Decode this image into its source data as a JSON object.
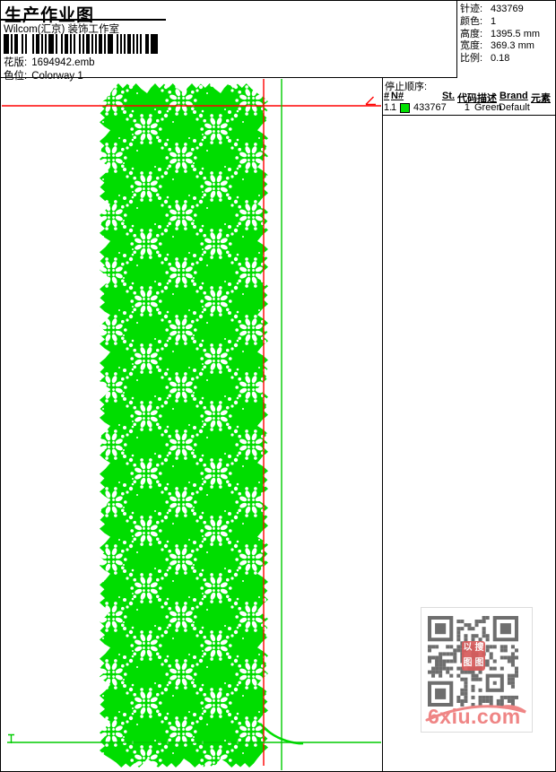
{
  "header": {
    "title": "生产作业图",
    "company": "Wilcom(汇京) 装饰工作室",
    "design_fields": [
      {
        "label": "花版:",
        "value": "1694942.emb"
      },
      {
        "label": "色位:",
        "value": "Colorway 1"
      }
    ],
    "info_fields": [
      {
        "label": "针迹:",
        "value": "433769"
      },
      {
        "label": "颜色:",
        "value": "1"
      },
      {
        "label": "高度:",
        "value": "1395.5 mm"
      },
      {
        "label": "宽度:",
        "value": "369.3 mm"
      },
      {
        "label": "比例:",
        "value": "0.18"
      }
    ]
  },
  "stop_table": {
    "title": "停止顺序:",
    "columns": [
      "#",
      "N#",
      "St.",
      "代码",
      "描述",
      "Brand",
      "元素"
    ],
    "row": {
      "seq": "1.",
      "needle": "1",
      "swatch_color": "#00e000",
      "stitches": "433767",
      "code": "1",
      "description": "Green",
      "brand": "Default",
      "element": ""
    }
  },
  "design": {
    "thread_color": "#00dd00",
    "hole_color": "#ffffff",
    "start_guide_color": "#ff0000",
    "end_guide_color": "#00cc00"
  },
  "watermark": {
    "site": "6xiu.com",
    "site_color": "#ef8585",
    "qr_color": "#6e6e6e",
    "seal_color": "#d85c5c",
    "seal_chars": "以图搜图"
  }
}
